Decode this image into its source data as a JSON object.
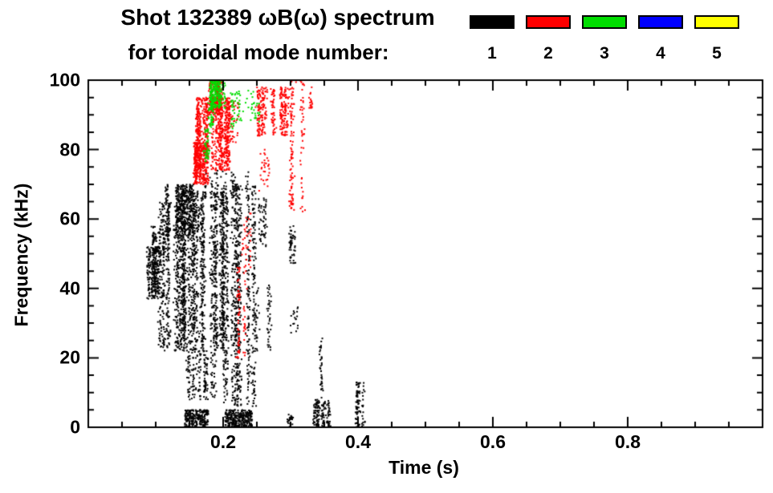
{
  "title": {
    "line1": "Shot 132389 ωB(ω) spectrum",
    "line2": "for toroidal mode number:"
  },
  "legend": {
    "entries": [
      {
        "label": "1",
        "color": "#000000"
      },
      {
        "label": "2",
        "color": "#ff0000"
      },
      {
        "label": "3",
        "color": "#00dd00"
      },
      {
        "label": "4",
        "color": "#0000ff"
      },
      {
        "label": "5",
        "color": "#ffff00"
      }
    ]
  },
  "chart_data": {
    "type": "scatter",
    "title": "Shot 132389 ωB(ω) spectrum for toroidal mode number",
    "xlabel": "Time (s)",
    "ylabel": "Frequency (kHz)",
    "xlim": [
      0,
      1.0
    ],
    "ylim": [
      0,
      100
    ],
    "grid": false,
    "legend_position": "top-right",
    "x_major_ticks": [
      0.2,
      0.4,
      0.6,
      0.8
    ],
    "x_tick_labels": [
      "0.2",
      "0.4",
      "0.6",
      "0.8"
    ],
    "x_minor_step": 0.05,
    "y_major_ticks": [
      0,
      20,
      40,
      60,
      80,
      100
    ],
    "y_tick_labels": [
      "0",
      "20",
      "40",
      "60",
      "80",
      "100"
    ],
    "y_minor_step": 5,
    "series": [
      {
        "name": "1",
        "color": "#000000",
        "clusters": [
          {
            "t": [
              0.085,
              0.107
            ],
            "f": [
              37,
              52
            ],
            "pts": 280,
            "cols": 9
          },
          {
            "t": [
              0.095,
              0.122
            ],
            "f": [
              50,
              58
            ],
            "pts": 90,
            "cols": 8
          },
          {
            "t": [
              0.105,
              0.14
            ],
            "f": [
              22,
              65
            ],
            "pts": 380,
            "cols": 12
          },
          {
            "t": [
              0.115,
              0.165
            ],
            "f": [
              55,
              70
            ],
            "pts": 430,
            "cols": 14
          },
          {
            "t": [
              0.13,
              0.2
            ],
            "f": [
              22,
              68
            ],
            "pts": 1400,
            "cols": 22
          },
          {
            "t": [
              0.14,
              0.19
            ],
            "f": [
              8,
              22
            ],
            "pts": 190,
            "cols": 12
          },
          {
            "t": [
              0.143,
              0.178
            ],
            "f": [
              0,
              5
            ],
            "pts": 240,
            "cols": 0
          },
          {
            "t": [
              0.17,
              0.24
            ],
            "f": [
              66,
              74
            ],
            "pts": 90,
            "cols": 10
          },
          {
            "t": [
              0.2,
              0.247
            ],
            "f": [
              6,
              70
            ],
            "pts": 820,
            "cols": 14
          },
          {
            "t": [
              0.203,
              0.243
            ],
            "f": [
              0,
              5
            ],
            "pts": 280,
            "cols": 0
          },
          {
            "t": [
              0.247,
              0.272
            ],
            "f": [
              22,
              42
            ],
            "pts": 60,
            "cols": 6
          },
          {
            "t": [
              0.252,
              0.268
            ],
            "f": [
              52,
              66
            ],
            "pts": 55,
            "cols": 5
          },
          {
            "t": [
              0.297,
              0.306
            ],
            "f": [
              47,
              58
            ],
            "pts": 55,
            "cols": 3
          },
          {
            "t": [
              0.3,
              0.312
            ],
            "f": [
              27,
              35
            ],
            "pts": 18,
            "cols": 3
          },
          {
            "t": [
              0.295,
              0.305
            ],
            "f": [
              0,
              4
            ],
            "pts": 25,
            "cols": 2
          },
          {
            "t": [
              0.335,
              0.362
            ],
            "f": [
              0,
              8
            ],
            "pts": 140,
            "cols": 8
          },
          {
            "t": [
              0.344,
              0.352
            ],
            "f": [
              8,
              26
            ],
            "pts": 35,
            "cols": 2
          },
          {
            "t": [
              0.395,
              0.408
            ],
            "f": [
              0,
              13
            ],
            "pts": 85,
            "cols": 4
          }
        ]
      },
      {
        "name": "2",
        "color": "#ff0000",
        "clusters": [
          {
            "t": [
              0.148,
              0.178
            ],
            "f": [
              70,
              82
            ],
            "pts": 280,
            "cols": 10
          },
          {
            "t": [
              0.16,
              0.21
            ],
            "f": [
              74,
              95
            ],
            "pts": 800,
            "cols": 16
          },
          {
            "t": [
              0.178,
              0.198
            ],
            "f": [
              90,
              100
            ],
            "pts": 220,
            "cols": 8
          },
          {
            "t": [
              0.208,
              0.226
            ],
            "f": [
              82,
              94
            ],
            "pts": 70,
            "cols": 6
          },
          {
            "t": [
              0.248,
              0.3
            ],
            "f": [
              84,
              98
            ],
            "pts": 300,
            "cols": 12
          },
          {
            "t": [
              0.3,
              0.324
            ],
            "f": [
              62,
              100
            ],
            "pts": 140,
            "cols": 6
          },
          {
            "t": [
              0.222,
              0.233
            ],
            "f": [
              20,
              46
            ],
            "pts": 70,
            "cols": 3
          },
          {
            "t": [
              0.226,
              0.24
            ],
            "f": [
              46,
              62
            ],
            "pts": 35,
            "cols": 3
          },
          {
            "t": [
              0.328,
              0.336
            ],
            "f": [
              92,
              98
            ],
            "pts": 18,
            "cols": 2
          },
          {
            "t": [
              0.255,
              0.268
            ],
            "f": [
              68,
              80
            ],
            "pts": 30,
            "cols": 4
          }
        ]
      },
      {
        "name": "3",
        "color": "#00dd00",
        "clusters": [
          {
            "t": [
              0.182,
              0.202
            ],
            "f": [
              92,
              100
            ],
            "pts": 220,
            "cols": 8
          },
          {
            "t": [
              0.175,
              0.186
            ],
            "f": [
              86,
              94
            ],
            "pts": 45,
            "cols": 4
          },
          {
            "t": [
              0.205,
              0.242
            ],
            "f": [
              86,
              97
            ],
            "pts": 60,
            "cols": 10
          },
          {
            "t": [
              0.168,
              0.181
            ],
            "f": [
              76,
              86
            ],
            "pts": 40,
            "cols": 5
          },
          {
            "t": [
              0.245,
              0.258
            ],
            "f": [
              88,
              94
            ],
            "pts": 15,
            "cols": 3
          }
        ]
      },
      {
        "name": "4",
        "color": "#0000ff",
        "clusters": []
      },
      {
        "name": "5",
        "color": "#ffff00",
        "clusters": []
      }
    ]
  }
}
